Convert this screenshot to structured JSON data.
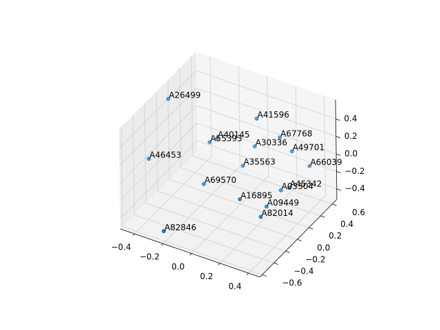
{
  "chart_data": {
    "type": "scatter3d",
    "color": "#1f77b4",
    "labels": [
      "A26499",
      "A41596",
      "A40145",
      "A55393",
      "A67768",
      "A30336",
      "A49701",
      "A46453",
      "A35563",
      "A66039",
      "A69570",
      "A45342",
      "A03304",
      "A16895",
      "A09449",
      "A82014",
      "A82846"
    ],
    "x": [
      -0.45,
      0.06,
      -0.15,
      -0.22,
      0.15,
      0.01,
      0.23,
      -0.48,
      -0.03,
      0.32,
      -0.19,
      0.3,
      0.19,
      0.05,
      0.2,
      0.2,
      -0.21
    ],
    "y": [
      0.08,
      0.35,
      0.18,
      0.22,
      0.52,
      0.43,
      0.53,
      -0.19,
      0.32,
      0.61,
      0.04,
      0.31,
      0.43,
      0.07,
      0.16,
      0.06,
      -0.6
    ],
    "z": [
      0.51,
      0.39,
      0.16,
      0.05,
      0.11,
      -0.01,
      -0.01,
      -0.01,
      -0.18,
      -0.18,
      -0.29,
      -0.24,
      -0.41,
      -0.35,
      -0.41,
      -0.46,
      -0.41
    ],
    "xlim": [
      -0.5,
      0.48
    ],
    "ylim": [
      -0.64,
      0.68
    ],
    "zlim": [
      -0.52,
      0.62
    ],
    "xticks": [
      {
        "value": -0.4,
        "label": "−0.4"
      },
      {
        "value": -0.2,
        "label": "−0.2"
      },
      {
        "value": 0,
        "label": "0.0"
      },
      0.2,
      0.4
    ],
    "yticks": [
      {
        "value": -0.6,
        "label": "−0.6"
      },
      {
        "value": -0.4,
        "label": "−0.4"
      },
      {
        "value": -0.2,
        "label": "−0.2"
      },
      {
        "value": 0,
        "label": "0.0"
      },
      0.2,
      0.4,
      0.6
    ],
    "zticks": [
      {
        "value": -0.4,
        "label": "−0.4"
      },
      {
        "value": -0.2,
        "label": "−0.2"
      },
      {
        "value": 0,
        "label": "0.0"
      },
      0.2,
      0.4
    ],
    "grid": true
  }
}
